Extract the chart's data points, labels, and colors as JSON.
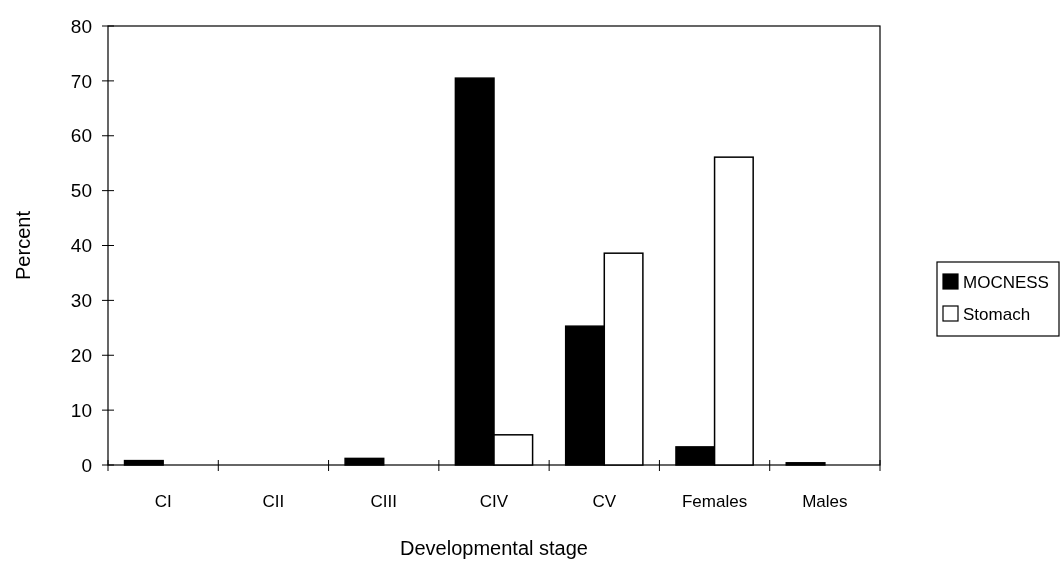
{
  "chart_data": {
    "type": "bar",
    "xlabel": "Developmental stage",
    "ylabel": "Percent",
    "categories": [
      "CI",
      "CII",
      "CIII",
      "CIV",
      "CV",
      "Females",
      "Males"
    ],
    "series": [
      {
        "name": "MOCNESS",
        "color": "#000000",
        "values": [
          0.8,
          0,
          1.2,
          70.5,
          25.3,
          3.3,
          0.4
        ]
      },
      {
        "name": "Stomach",
        "color": "#ffffff",
        "values": [
          0,
          0,
          0,
          5.5,
          38.6,
          56.1,
          0
        ]
      }
    ],
    "ylim": [
      0,
      80
    ],
    "yticks": [
      0,
      10,
      20,
      30,
      40,
      50,
      60,
      70,
      80
    ],
    "grid": false,
    "legend": "right"
  }
}
